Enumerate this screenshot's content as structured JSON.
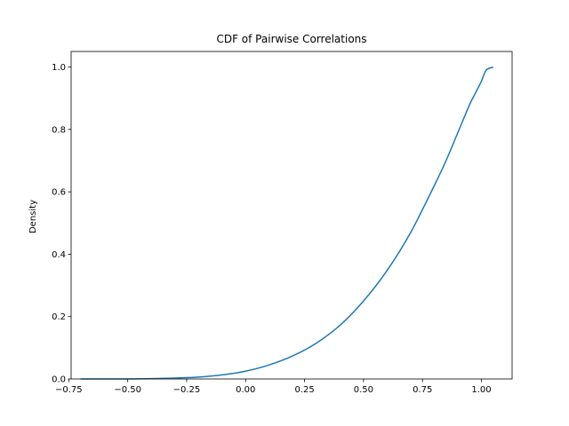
{
  "chart_data": {
    "type": "line",
    "title": "CDF of Pairwise Correlations",
    "xlabel": "",
    "ylabel": "Density",
    "xlim": [
      -0.74,
      1.13
    ],
    "ylim": [
      0.0,
      1.05
    ],
    "x_ticks": [
      -0.75,
      -0.5,
      -0.25,
      0.0,
      0.25,
      0.5,
      0.75,
      1.0
    ],
    "x_tick_labels": [
      "−0.75",
      "−0.50",
      "−0.25",
      "0.00",
      "0.25",
      "0.50",
      "0.75",
      "1.00"
    ],
    "y_ticks": [
      0.0,
      0.2,
      0.4,
      0.6,
      0.8,
      1.0
    ],
    "y_tick_labels": [
      "0.0",
      "0.2",
      "0.4",
      "0.6",
      "0.8",
      "1.0"
    ],
    "grid": false,
    "legend": "none",
    "line_color": "#1f77b4",
    "series": [
      {
        "x": [
          -0.7,
          -0.6,
          -0.5,
          -0.4,
          -0.3,
          -0.2,
          -0.1,
          0.0,
          0.1,
          0.2,
          0.3,
          0.4,
          0.5,
          0.6,
          0.7,
          0.8,
          0.85,
          0.9,
          0.95,
          0.97,
          1.0,
          1.02,
          1.05
        ],
        "values": [
          0.0,
          0.0,
          0.0,
          0.001,
          0.003,
          0.006,
          0.013,
          0.025,
          0.045,
          0.074,
          0.115,
          0.172,
          0.25,
          0.348,
          0.47,
          0.62,
          0.7,
          0.79,
          0.88,
          0.91,
          0.955,
          0.99,
          1.0
        ]
      }
    ]
  }
}
